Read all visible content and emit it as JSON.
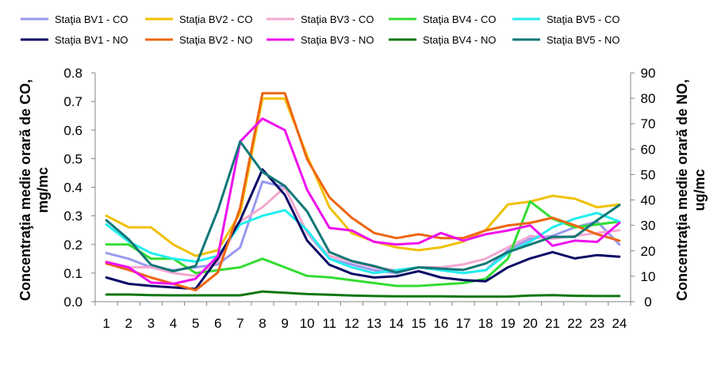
{
  "chart_data": {
    "type": "line",
    "x": [
      1,
      2,
      3,
      4,
      5,
      6,
      7,
      8,
      9,
      10,
      11,
      12,
      13,
      14,
      15,
      16,
      17,
      18,
      19,
      20,
      21,
      22,
      23,
      24
    ],
    "y_left": {
      "label": "Concentraţia medie orară de CO, mg/mc",
      "ylim": [
        0,
        0.8
      ],
      "ticks": [
        "0.0",
        "0.1",
        "0.2",
        "0.3",
        "0.4",
        "0.5",
        "0.6",
        "0.7",
        "0.8"
      ]
    },
    "y_right": {
      "label": "Concentraţia medie orară de NO, ug/mc",
      "ylim": [
        0,
        90
      ],
      "ticks": [
        "0",
        "10",
        "20",
        "30",
        "40",
        "50",
        "60",
        "70",
        "80",
        "90"
      ]
    },
    "grid": false,
    "legend_position": "top",
    "series": [
      {
        "name": "Staţia BV1 - CO",
        "axis": "left",
        "color": "#9999ee",
        "values": [
          0.17,
          0.15,
          0.12,
          0.11,
          0.12,
          0.13,
          0.19,
          0.42,
          0.4,
          0.24,
          0.15,
          0.13,
          0.11,
          0.1,
          0.12,
          0.11,
          0.1,
          0.11,
          0.18,
          0.22,
          0.23,
          0.26,
          0.28,
          0.2
        ]
      },
      {
        "name": "Staţia BV2 - CO",
        "axis": "left",
        "color": "#f0c000",
        "values": [
          0.3,
          0.26,
          0.26,
          0.2,
          0.16,
          0.18,
          0.31,
          0.71,
          0.71,
          0.51,
          0.33,
          0.24,
          0.21,
          0.19,
          0.18,
          0.19,
          0.21,
          0.25,
          0.34,
          0.35,
          0.37,
          0.36,
          0.33,
          0.34
        ]
      },
      {
        "name": "Staţia BV3 - CO",
        "axis": "left",
        "color": "#f4a8d0",
        "values": [
          0.14,
          0.12,
          0.12,
          0.1,
          0.09,
          0.14,
          0.28,
          0.33,
          0.4,
          0.24,
          0.16,
          0.14,
          0.12,
          0.11,
          0.12,
          0.12,
          0.13,
          0.15,
          0.19,
          0.23,
          0.22,
          0.23,
          0.24,
          0.25
        ]
      },
      {
        "name": "Staţia BV4 - CO",
        "axis": "left",
        "color": "#33dd33",
        "values": [
          0.2,
          0.2,
          0.15,
          0.15,
          0.1,
          0.11,
          0.12,
          0.15,
          0.12,
          0.09,
          0.085,
          0.075,
          0.065,
          0.055,
          0.055,
          0.06,
          0.065,
          0.08,
          0.15,
          0.35,
          0.29,
          0.26,
          0.27,
          0.28
        ]
      },
      {
        "name": "Staţia BV5 - CO",
        "axis": "left",
        "color": "#22eeee",
        "values": [
          0.27,
          0.21,
          0.17,
          0.15,
          0.14,
          0.16,
          0.27,
          0.3,
          0.32,
          0.25,
          0.15,
          0.12,
          0.1,
          0.11,
          0.12,
          0.11,
          0.1,
          0.11,
          0.17,
          0.21,
          0.26,
          0.29,
          0.31,
          0.28
        ]
      },
      {
        "name": "Staţia BV1 - NO",
        "axis": "right",
        "color": "#0a0a66",
        "values": [
          9.5,
          7,
          6.2,
          5.6,
          5,
          17,
          32,
          52,
          42,
          24,
          14.5,
          11,
          9.5,
          10,
          12,
          9.5,
          8.5,
          8,
          13.5,
          17,
          19.5,
          17,
          18.3,
          17.7
        ]
      },
      {
        "name": "Staţia BV2 - NO",
        "axis": "right",
        "color": "#ee6611",
        "values": [
          15,
          12.5,
          9.5,
          7,
          4.5,
          11.5,
          37,
          82,
          82,
          56,
          41,
          33,
          27,
          25,
          26.5,
          25,
          25,
          28,
          30,
          31,
          33,
          30,
          26.5,
          24
        ]
      },
      {
        "name": "Staţia BV3 - NO",
        "axis": "right",
        "color": "#ee11ee",
        "values": [
          15.5,
          13.5,
          7.5,
          7,
          9,
          18,
          63,
          72,
          67.5,
          44,
          29,
          28,
          23.5,
          22.5,
          23,
          27,
          24,
          26.5,
          28,
          30,
          22,
          24,
          23.5,
          31
        ]
      },
      {
        "name": "Staţia BV4 - NO",
        "axis": "right",
        "color": "#117711",
        "values": [
          2.8,
          2.8,
          2.6,
          2.5,
          2.5,
          2.5,
          2.5,
          4,
          3.5,
          3,
          2.7,
          2.4,
          2.2,
          2.1,
          2.1,
          2.1,
          2,
          2,
          2,
          2.4,
          2.6,
          2.3,
          2.2,
          2.2
        ]
      },
      {
        "name": "Staţia BV5 - NO",
        "axis": "right",
        "color": "#117777",
        "values": [
          32,
          24.5,
          14.5,
          12,
          14,
          36,
          63,
          51,
          45.5,
          35.5,
          19.5,
          16,
          14,
          11.5,
          13.5,
          13,
          12.5,
          15,
          19.5,
          22.5,
          25.5,
          25.5,
          32,
          38
        ]
      }
    ]
  }
}
